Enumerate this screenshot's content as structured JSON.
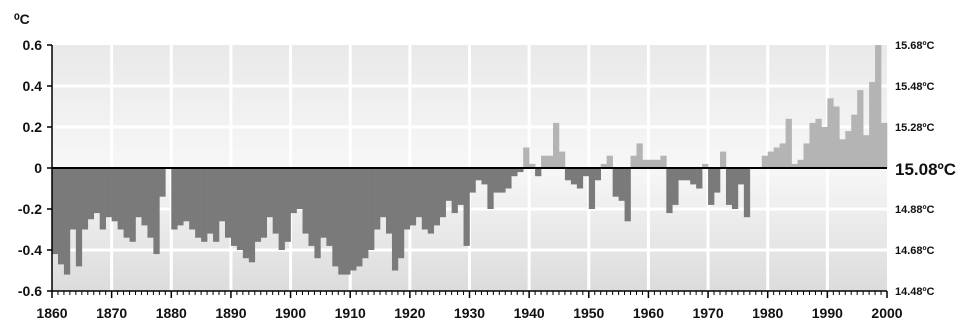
{
  "chart_data": {
    "type": "bar",
    "title": "",
    "xlabel": "",
    "ylabel": "",
    "y_unit_label": "⁰C",
    "xlim": [
      1860,
      2000
    ],
    "ylim": [
      -0.6,
      0.6
    ],
    "grid": true,
    "colors": {
      "negative": "#7a7a7a",
      "positive": "#b4b4b4",
      "grid": "#ffffff",
      "zero_line": "#000000"
    },
    "x_ticks": [
      1860,
      1870,
      1880,
      1890,
      1900,
      1910,
      1920,
      1930,
      1940,
      1950,
      1960,
      1970,
      1980,
      1990,
      2000
    ],
    "x_tick_labels": [
      "1860",
      "1870",
      "1880",
      "1890",
      "1900",
      "1910",
      "1920",
      "1930",
      "1940",
      "1950",
      "1960",
      "1970",
      "1980",
      "1990",
      "2000"
    ],
    "y_ticks": [
      0.6,
      0.4,
      0.2,
      0,
      -0.2,
      -0.4,
      -0.6
    ],
    "y_tick_labels": [
      "0.6",
      "0.4",
      "0.2",
      "0",
      "-0.2",
      "-0.4",
      "-0.6"
    ],
    "right_tick_labels": [
      "15.68ºC",
      "15.48ºC",
      "15.28ºC",
      "15.08ºC",
      "14.88ºC",
      "14.68ºC",
      "14.48ºC"
    ],
    "years": [
      1860,
      1861,
      1862,
      1863,
      1864,
      1865,
      1866,
      1867,
      1868,
      1869,
      1870,
      1871,
      1872,
      1873,
      1874,
      1875,
      1876,
      1877,
      1878,
      1879,
      1880,
      1881,
      1882,
      1883,
      1884,
      1885,
      1886,
      1887,
      1888,
      1889,
      1890,
      1891,
      1892,
      1893,
      1894,
      1895,
      1896,
      1897,
      1898,
      1899,
      1900,
      1901,
      1902,
      1903,
      1904,
      1905,
      1906,
      1907,
      1908,
      1909,
      1910,
      1911,
      1912,
      1913,
      1914,
      1915,
      1916,
      1917,
      1918,
      1919,
      1920,
      1921,
      1922,
      1923,
      1924,
      1925,
      1926,
      1927,
      1928,
      1929,
      1930,
      1931,
      1932,
      1933,
      1934,
      1935,
      1936,
      1937,
      1938,
      1939,
      1940,
      1941,
      1942,
      1943,
      1944,
      1945,
      1946,
      1947,
      1948,
      1949,
      1950,
      1951,
      1952,
      1953,
      1954,
      1955,
      1956,
      1957,
      1958,
      1959,
      1960,
      1961,
      1962,
      1963,
      1964,
      1965,
      1966,
      1967,
      1968,
      1969,
      1970,
      1971,
      1972,
      1973,
      1974,
      1975,
      1976,
      1977,
      1978,
      1979,
      1980,
      1981,
      1982,
      1983,
      1984,
      1985,
      1986,
      1987,
      1988,
      1989,
      1990,
      1991,
      1992,
      1993,
      1994,
      1995,
      1996,
      1997,
      1998,
      1999
    ],
    "values": [
      -0.42,
      -0.47,
      -0.52,
      -0.3,
      -0.48,
      -0.3,
      -0.25,
      -0.22,
      -0.3,
      -0.24,
      -0.26,
      -0.3,
      -0.34,
      -0.36,
      -0.24,
      -0.28,
      -0.34,
      -0.42,
      -0.14,
      0.0,
      -0.3,
      -0.28,
      -0.26,
      -0.3,
      -0.34,
      -0.36,
      -0.32,
      -0.36,
      -0.26,
      -0.34,
      -0.38,
      -0.4,
      -0.44,
      -0.46,
      -0.36,
      -0.34,
      -0.24,
      -0.32,
      -0.4,
      -0.36,
      -0.22,
      -0.2,
      -0.32,
      -0.38,
      -0.44,
      -0.34,
      -0.38,
      -0.48,
      -0.52,
      -0.52,
      -0.5,
      -0.48,
      -0.44,
      -0.4,
      -0.3,
      -0.24,
      -0.32,
      -0.5,
      -0.44,
      -0.3,
      -0.28,
      -0.24,
      -0.3,
      -0.32,
      -0.28,
      -0.24,
      -0.16,
      -0.22,
      -0.18,
      -0.38,
      -0.12,
      -0.06,
      -0.08,
      -0.2,
      -0.12,
      -0.12,
      -0.1,
      -0.04,
      -0.02,
      0.1,
      0.02,
      -0.04,
      0.06,
      0.06,
      0.22,
      0.08,
      -0.06,
      -0.08,
      -0.1,
      -0.04,
      -0.2,
      -0.06,
      0.02,
      0.06,
      -0.14,
      -0.16,
      -0.26,
      0.06,
      0.12,
      0.04,
      0.04,
      0.04,
      0.06,
      -0.22,
      -0.18,
      -0.06,
      -0.06,
      -0.08,
      -0.1,
      0.02,
      -0.18,
      -0.12,
      0.08,
      -0.18,
      -0.2,
      -0.08,
      -0.24,
      0.0,
      0.0,
      0.06,
      0.08,
      0.1,
      0.12,
      0.24,
      0.02,
      0.04,
      0.12,
      0.22,
      0.24,
      0.2,
      0.34,
      0.3,
      0.14,
      0.18,
      0.26,
      0.38,
      0.16,
      0.42,
      0.6,
      0.22
    ]
  }
}
